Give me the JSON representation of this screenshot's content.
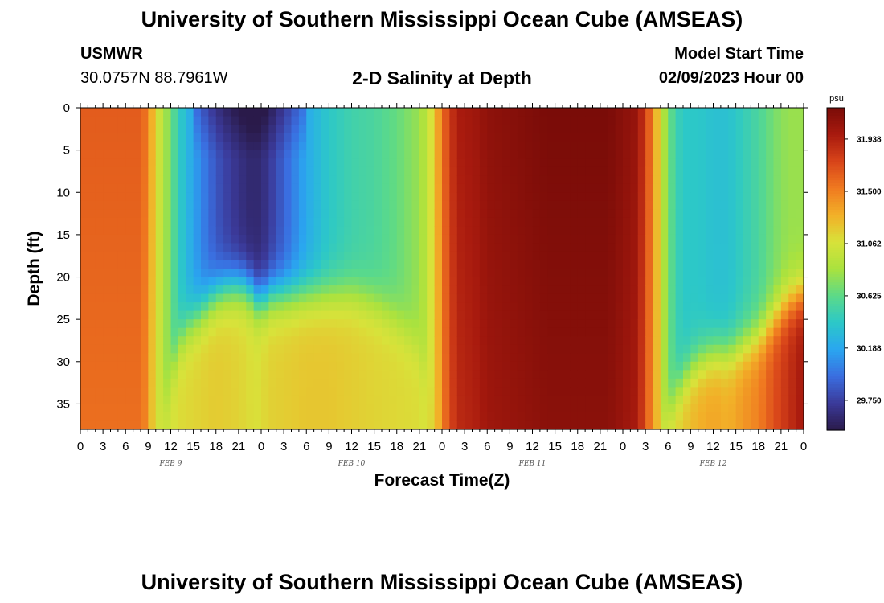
{
  "header": {
    "title": "University of Southern Mississippi Ocean Cube (AMSEAS)",
    "station": "USMWR",
    "coords": "30.0757N  88.7961W",
    "subtitle": "2-D Salinity at Depth",
    "model_label": "Model Start Time",
    "model_date": "02/09/2023 Hour 00"
  },
  "footer": {
    "title": "University of Southern Mississippi Ocean Cube (AMSEAS)"
  },
  "chart_data": {
    "type": "heatmap",
    "title": "2-D Salinity at Depth",
    "xlabel": "Forecast Time(Z)",
    "ylabel": "Depth (ft)",
    "x_range_hours": [
      0,
      96
    ],
    "ylim": [
      0,
      38
    ],
    "y_ticks": [
      0,
      5,
      10,
      15,
      20,
      25,
      30,
      35
    ],
    "x_tick_labels": [
      "0",
      "3",
      "6",
      "9",
      "12",
      "15",
      "18",
      "21",
      "0",
      "3",
      "6",
      "9",
      "12",
      "15",
      "18",
      "21",
      "0",
      "3",
      "6",
      "9",
      "12",
      "15",
      "18",
      "21",
      "0",
      "3",
      "6",
      "9",
      "12",
      "15",
      "18",
      "21",
      "0"
    ],
    "date_labels": [
      {
        "label": "FEB 9",
        "hour": 12
      },
      {
        "label": "FEB 10",
        "hour": 36
      },
      {
        "label": "FEB 11",
        "hour": 60
      },
      {
        "label": "FEB 12",
        "hour": 84
      }
    ],
    "colorbar": {
      "unit": "psu",
      "vmin": 29.5,
      "vmax": 32.2,
      "tick_values": [
        29.75,
        30.188,
        30.625,
        31.062,
        31.5,
        31.938
      ],
      "tick_labels": [
        "29.750",
        "30.188",
        "30.625",
        "31.062",
        "31.500",
        "31.938"
      ],
      "colors": [
        "#2a1a4a",
        "#3b3a9a",
        "#3a6ee0",
        "#2aa6f0",
        "#2cc8c8",
        "#5cda88",
        "#aae23e",
        "#d8e23a",
        "#f2b028",
        "#f07a20",
        "#d8441a",
        "#a81a0e",
        "#7a0c08"
      ]
    },
    "salinity_surface": {
      "time_hours": [
        0,
        8,
        9,
        10,
        11,
        12,
        13,
        14,
        16,
        18,
        20,
        22,
        23,
        24,
        25,
        27,
        30,
        33,
        36,
        39,
        42,
        45,
        46,
        47,
        48,
        49,
        50,
        51,
        52,
        53,
        54,
        58,
        62,
        66,
        70,
        74,
        76,
        77,
        78,
        79,
        80,
        82,
        84,
        86,
        88,
        90,
        92,
        94,
        96
      ],
      "surface_psu": [
        31.65,
        31.65,
        31.5,
        31.1,
        30.9,
        30.7,
        30.45,
        30.3,
        30.05,
        29.85,
        29.72,
        29.62,
        29.6,
        29.62,
        29.7,
        29.9,
        30.2,
        30.4,
        30.5,
        30.55,
        30.65,
        30.8,
        30.95,
        31.2,
        31.55,
        31.8,
        31.95,
        32.0,
        32.0,
        32.05,
        32.1,
        32.15,
        32.2,
        32.2,
        32.2,
        32.05,
        31.5,
        31.0,
        30.7,
        30.5,
        30.4,
        30.4,
        30.35,
        30.35,
        30.45,
        30.55,
        30.7,
        30.8,
        30.8
      ],
      "bottom_psu": [
        31.65,
        31.65,
        31.5,
        31.1,
        31.0,
        31.05,
        31.1,
        31.12,
        31.15,
        31.18,
        31.16,
        31.12,
        31.08,
        31.1,
        31.15,
        31.17,
        31.2,
        31.2,
        31.17,
        31.14,
        31.12,
        31.1,
        31.05,
        31.2,
        31.55,
        31.8,
        31.95,
        32.0,
        32.0,
        32.05,
        32.1,
        32.15,
        32.2,
        32.2,
        32.2,
        32.05,
        31.5,
        31.1,
        31.1,
        31.15,
        31.2,
        31.3,
        31.35,
        31.3,
        31.4,
        31.5,
        31.7,
        31.85,
        32.0
      ],
      "halocline_depth_ft": [
        38,
        38,
        38,
        38,
        36,
        32,
        28,
        26,
        24,
        22,
        21,
        21,
        22,
        23,
        22,
        22,
        22,
        22,
        22,
        23,
        25,
        28,
        32,
        36,
        38,
        38,
        38,
        38,
        38,
        38,
        38,
        38,
        38,
        38,
        38,
        38,
        38,
        38,
        36,
        34,
        32,
        30,
        29,
        29,
        28,
        27,
        25,
        23,
        22
      ]
    }
  }
}
